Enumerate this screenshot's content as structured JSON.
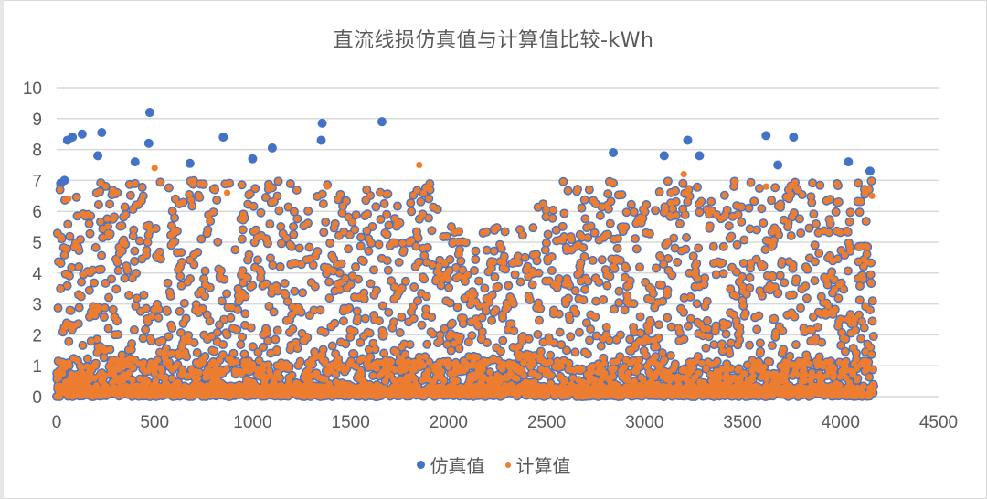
{
  "chart_data": {
    "type": "scatter",
    "title": "直流线损仿真值与计算值比较-kWh",
    "xlabel": "",
    "ylabel": "",
    "xlim": [
      0,
      4500
    ],
    "ylim": [
      0,
      10
    ],
    "x_ticks": [
      "0",
      "500",
      "1000",
      "1500",
      "2000",
      "2500",
      "3000",
      "3500",
      "4000",
      "4500"
    ],
    "y_ticks": [
      "0",
      "1",
      "2",
      "3",
      "4",
      "5",
      "6",
      "7",
      "8",
      "9",
      "10"
    ],
    "grid": {
      "horizontal": true,
      "vertical": false
    },
    "legend_position": "bottom",
    "n_points_approx": 4170,
    "series": [
      {
        "name": "仿真值",
        "color": "#4472C4",
        "description": "Simulated line loss; dense band near 0, widely spread 0–7.5, overlaps 计算值 almost everywhere except outliers above ~7",
        "notable_points": [
          {
            "x": 20,
            "y": 6.9
          },
          {
            "x": 40,
            "y": 7.0
          },
          {
            "x": 55,
            "y": 8.3
          },
          {
            "x": 80,
            "y": 8.4
          },
          {
            "x": 130,
            "y": 8.5
          },
          {
            "x": 210,
            "y": 7.8
          },
          {
            "x": 230,
            "y": 8.55
          },
          {
            "x": 400,
            "y": 7.6
          },
          {
            "x": 470,
            "y": 8.2
          },
          {
            "x": 475,
            "y": 9.2
          },
          {
            "x": 680,
            "y": 7.55
          },
          {
            "x": 850,
            "y": 8.4
          },
          {
            "x": 1000,
            "y": 7.7
          },
          {
            "x": 1100,
            "y": 8.05
          },
          {
            "x": 1350,
            "y": 8.3
          },
          {
            "x": 1355,
            "y": 8.85
          },
          {
            "x": 1660,
            "y": 8.9
          },
          {
            "x": 2840,
            "y": 7.9
          },
          {
            "x": 3100,
            "y": 7.8
          },
          {
            "x": 3220,
            "y": 8.3
          },
          {
            "x": 3280,
            "y": 7.8
          },
          {
            "x": 3620,
            "y": 8.45
          },
          {
            "x": 3680,
            "y": 7.5
          },
          {
            "x": 3760,
            "y": 8.4
          },
          {
            "x": 4040,
            "y": 7.6
          },
          {
            "x": 4150,
            "y": 7.3
          }
        ]
      },
      {
        "name": "计算值",
        "color": "#ED7D31",
        "description": "Calculated line loss; dense band near 0, spread 0–7, max about 7.4; nearly coincident with 仿真值",
        "notable_points": [
          {
            "x": 60,
            "y": 6.4
          },
          {
            "x": 500,
            "y": 7.4
          },
          {
            "x": 870,
            "y": 6.6
          },
          {
            "x": 1380,
            "y": 6.8
          },
          {
            "x": 1850,
            "y": 7.5
          },
          {
            "x": 3200,
            "y": 7.2
          },
          {
            "x": 3620,
            "y": 6.8
          },
          {
            "x": 4160,
            "y": 6.5
          }
        ]
      }
    ]
  },
  "legend": {
    "items": [
      {
        "label": "仿真值",
        "color": "#4472C4"
      },
      {
        "label": "计算值",
        "color": "#ED7D31"
      }
    ]
  }
}
